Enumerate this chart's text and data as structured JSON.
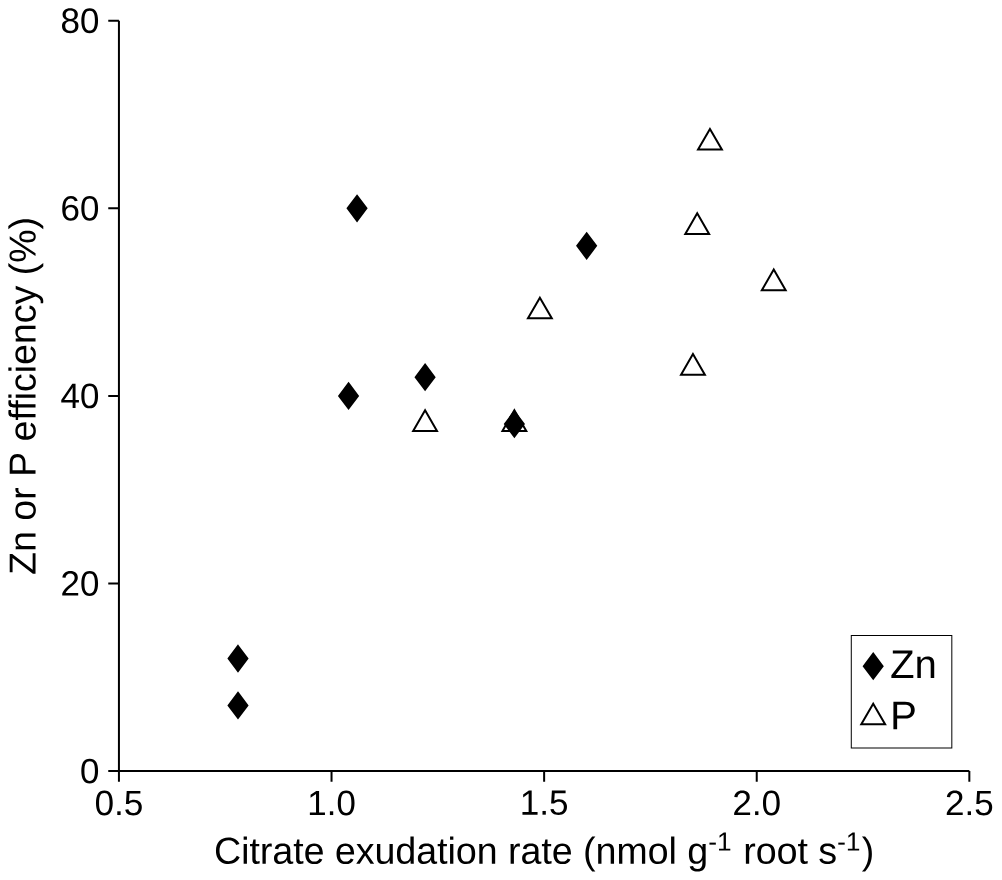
{
  "chart_data": {
    "type": "scatter",
    "xlabel": "Citrate exudation rate (nmol g$^{-1}$ root s$^{-1}$)",
    "ylabel": "Zn or P efficiency (%)",
    "xlim": [
      0.5,
      2.5
    ],
    "xticks": [
      {
        "value": 0.5,
        "label": "0.5"
      },
      {
        "value": 1.0,
        "label": "1.0"
      },
      {
        "value": 1.5,
        "label": "1.5"
      },
      {
        "value": 2.0,
        "label": "2.0"
      },
      {
        "value": 2.5,
        "label": "2.5"
      }
    ],
    "ylim": [
      0,
      80
    ],
    "yticks": [
      0,
      20,
      40,
      60,
      80
    ],
    "legend": "bottom right",
    "grid": false,
    "series": [
      {
        "name": "Zn",
        "color": "#000000",
        "marker": "diamond",
        "x": [
          0.78,
          0.78,
          1.04,
          1.06,
          1.22,
          1.43,
          1.6
        ],
        "values": [
          7,
          12,
          40,
          60,
          42,
          37,
          56
        ]
      },
      {
        "name": "P",
        "color": "#000000",
        "marker": "triangle",
        "x": [
          1.22,
          1.43,
          1.49,
          1.86,
          1.89,
          1.85,
          2.04
        ],
        "values": [
          37,
          37,
          49,
          58,
          67,
          43,
          52
        ]
      }
    ]
  }
}
